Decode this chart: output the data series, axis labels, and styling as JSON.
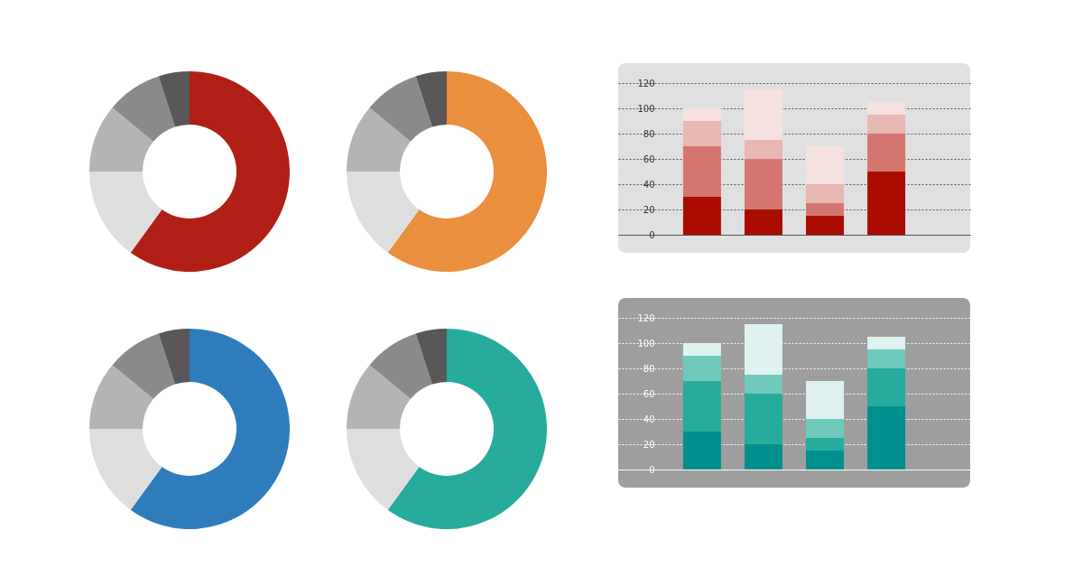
{
  "chart_data": [
    {
      "type": "donut",
      "categories": [
        null,
        null,
        null,
        null,
        null
      ],
      "values": [
        60,
        15,
        11,
        9,
        5
      ],
      "colors": [
        "#b01f16",
        "#dedede",
        "#b4b4b4",
        "#8a8a8a",
        "#5a5758"
      ]
    },
    {
      "type": "donut",
      "categories": [
        null,
        null,
        null,
        null,
        null
      ],
      "values": [
        60,
        15,
        11,
        9,
        5
      ],
      "colors": [
        "#ea8f3e",
        "#dedede",
        "#b4b4b4",
        "#8a8a8a",
        "#5a5758"
      ]
    },
    {
      "type": "bar",
      "stacked": true,
      "categories": [
        null,
        null,
        null,
        null
      ],
      "ylim": [
        0,
        120
      ],
      "yticks": [
        0,
        20,
        40,
        60,
        80,
        100,
        120
      ],
      "grid": "y",
      "tick_labels": "y",
      "series": [
        {
          "color": "#aa0c00",
          "values": [
            30,
            20,
            15,
            50
          ]
        },
        {
          "color": "#d4766f",
          "values": [
            40,
            40,
            10,
            30
          ]
        },
        {
          "color": "#e8b8b3",
          "values": [
            20,
            15,
            15,
            15
          ]
        },
        {
          "color": "#f5e1df",
          "values": [
            10,
            40,
            30,
            10
          ]
        }
      ]
    },
    {
      "type": "donut",
      "categories": [
        null,
        null,
        null,
        null,
        null
      ],
      "values": [
        60,
        15,
        11,
        9,
        5
      ],
      "colors": [
        "#2f7cbd",
        "#dedede",
        "#b4b4b4",
        "#8a8a8a",
        "#5a5758"
      ]
    },
    {
      "type": "donut",
      "categories": [
        null,
        null,
        null,
        null,
        null
      ],
      "values": [
        60,
        15,
        11,
        9,
        5
      ],
      "colors": [
        "#27ab9d",
        "#dedede",
        "#b4b4b4",
        "#8a8a8a",
        "#5a5758"
      ]
    },
    {
      "type": "bar",
      "stacked": true,
      "categories": [
        null,
        null,
        null,
        null
      ],
      "ylim": [
        0,
        120
      ],
      "yticks": [
        0,
        20,
        40,
        60,
        80,
        100,
        120
      ],
      "grid": "y",
      "tick_labels": "y",
      "series": [
        {
          "color": "#008f8c",
          "values": [
            30,
            20,
            15,
            50
          ]
        },
        {
          "color": "#26ab9d",
          "values": [
            40,
            40,
            10,
            30
          ]
        },
        {
          "color": "#6fc9bd",
          "values": [
            20,
            15,
            15,
            15
          ]
        },
        {
          "color": "#dff2f0",
          "values": [
            10,
            40,
            30,
            10
          ]
        }
      ]
    }
  ]
}
